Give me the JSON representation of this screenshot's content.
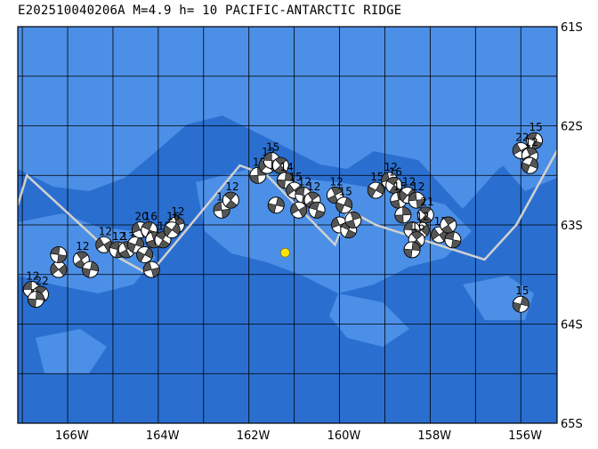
{
  "title": "E202510040206A  M=4.9  h= 10  PACIFIC-ANTARCTIC RIDGE",
  "map": {
    "lon_range": [
      -167.1,
      -155.2
    ],
    "lat_range": [
      -65,
      -61
    ],
    "lat_labels": [
      "61S",
      "62S",
      "63S",
      "64S",
      "65S"
    ],
    "lat_label_values": [
      -61,
      -62,
      -63,
      -64,
      -65
    ],
    "lon_labels": [
      "166W",
      "164W",
      "162W",
      "160W",
      "158W",
      "156W"
    ],
    "lon_label_values": [
      -166,
      -164,
      -162,
      -160,
      -158,
      -156
    ],
    "grid_lons": [
      -167,
      -166,
      -165,
      -164,
      -163,
      -162,
      -161,
      -160,
      -159,
      -158,
      -157,
      -156
    ],
    "grid_lats": [
      -61.5,
      -62,
      -62.5,
      -63,
      -63.5,
      -64,
      -64.5
    ],
    "colors": {
      "ocean_deep": "#2a6fd0",
      "ocean_shallow": "#4c8fe6",
      "grid": "#000000",
      "plate_boundary": "#d0d0d0",
      "event": "#ffe600",
      "beachball_dark": "#555555",
      "beachball_light": "#ffffff"
    },
    "plate_boundary": [
      [
        -167.1,
        -62.8
      ],
      [
        -166.9,
        -62.5
      ],
      [
        -165.0,
        -63.3
      ],
      [
        -164.2,
        -63.5
      ],
      [
        -162.2,
        -62.4
      ],
      [
        -161.6,
        -62.5
      ],
      [
        -160.1,
        -63.2
      ],
      [
        -159.8,
        -62.85
      ],
      [
        -159.2,
        -63.0
      ],
      [
        -156.8,
        -63.35
      ],
      [
        -156.1,
        -63.0
      ],
      [
        -155.2,
        -62.25
      ]
    ],
    "event": {
      "lon": -161.2,
      "lat": -63.28
    },
    "mechanisms": [
      {
        "lon": -166.8,
        "lat": -63.65,
        "label": "12"
      },
      {
        "lon": -166.6,
        "lat": -63.7,
        "label": "22"
      },
      {
        "lon": -166.7,
        "lat": -63.75,
        "label": ""
      },
      {
        "lon": -166.2,
        "lat": -63.45,
        "label": "12"
      },
      {
        "lon": -166.2,
        "lat": -63.3,
        "label": ""
      },
      {
        "lon": -165.7,
        "lat": -63.35,
        "label": "12"
      },
      {
        "lon": -165.5,
        "lat": -63.45,
        "label": ""
      },
      {
        "lon": -165.2,
        "lat": -63.2,
        "label": "12"
      },
      {
        "lon": -164.9,
        "lat": -63.25,
        "label": "12"
      },
      {
        "lon": -164.7,
        "lat": -63.25,
        "label": "13"
      },
      {
        "lon": -164.5,
        "lat": -63.2,
        "label": "15"
      },
      {
        "lon": -164.4,
        "lat": -63.05,
        "label": "20"
      },
      {
        "lon": -164.2,
        "lat": -63.05,
        "label": "16"
      },
      {
        "lon": -164.1,
        "lat": -63.15,
        "label": ""
      },
      {
        "lon": -164.3,
        "lat": -63.3,
        "label": ""
      },
      {
        "lon": -164.15,
        "lat": -63.45,
        "label": ""
      },
      {
        "lon": -163.9,
        "lat": -63.15,
        "label": "15"
      },
      {
        "lon": -163.6,
        "lat": -63.0,
        "label": "12"
      },
      {
        "lon": -163.7,
        "lat": -63.05,
        "label": "16"
      },
      {
        "lon": -162.6,
        "lat": -62.85,
        "label": "1"
      },
      {
        "lon": -162.4,
        "lat": -62.75,
        "label": "12"
      },
      {
        "lon": -161.8,
        "lat": -62.5,
        "label": "15"
      },
      {
        "lon": -161.6,
        "lat": -62.4,
        "label": "12"
      },
      {
        "lon": -161.5,
        "lat": -62.35,
        "label": "15"
      },
      {
        "lon": -161.3,
        "lat": -62.4,
        "label": ""
      },
      {
        "lon": -161.2,
        "lat": -62.55,
        "label": "14"
      },
      {
        "lon": -161.0,
        "lat": -62.65,
        "label": "15"
      },
      {
        "lon": -160.8,
        "lat": -62.7,
        "label": "12"
      },
      {
        "lon": -160.6,
        "lat": -62.75,
        "label": "12"
      },
      {
        "lon": -161.4,
        "lat": -62.8,
        "label": ""
      },
      {
        "lon": -160.9,
        "lat": -62.85,
        "label": ""
      },
      {
        "lon": -160.5,
        "lat": -62.85,
        "label": ""
      },
      {
        "lon": -160.1,
        "lat": -62.7,
        "label": "12"
      },
      {
        "lon": -159.9,
        "lat": -62.8,
        "label": "15"
      },
      {
        "lon": -160.0,
        "lat": -63.0,
        "label": ""
      },
      {
        "lon": -159.8,
        "lat": -63.05,
        "label": ""
      },
      {
        "lon": -159.7,
        "lat": -62.95,
        "label": ""
      },
      {
        "lon": -159.2,
        "lat": -62.65,
        "label": "15"
      },
      {
        "lon": -158.9,
        "lat": -62.55,
        "label": "12"
      },
      {
        "lon": -158.8,
        "lat": -62.6,
        "label": "16"
      },
      {
        "lon": -158.7,
        "lat": -62.75,
        "label": "15"
      },
      {
        "lon": -158.5,
        "lat": -62.7,
        "label": "12"
      },
      {
        "lon": -158.3,
        "lat": -62.75,
        "label": "12"
      },
      {
        "lon": -158.1,
        "lat": -62.9,
        "label": "21"
      },
      {
        "lon": -158.6,
        "lat": -62.9,
        "label": ""
      },
      {
        "lon": -158.2,
        "lat": -63.05,
        "label": "12"
      },
      {
        "lon": -158.4,
        "lat": -63.05,
        "label": ""
      },
      {
        "lon": -158.3,
        "lat": -63.15,
        "label": "16"
      },
      {
        "lon": -158.4,
        "lat": -63.25,
        "label": ""
      },
      {
        "lon": -157.8,
        "lat": -63.1,
        "label": "15"
      },
      {
        "lon": -157.5,
        "lat": -63.15,
        "label": ""
      },
      {
        "lon": -157.6,
        "lat": -63.0,
        "label": ""
      },
      {
        "lon": -156.0,
        "lat": -63.8,
        "label": "15"
      },
      {
        "lon": -156.0,
        "lat": -62.25,
        "label": "22"
      },
      {
        "lon": -155.7,
        "lat": -62.15,
        "label": "15"
      },
      {
        "lon": -155.8,
        "lat": -62.3,
        "label": "12"
      },
      {
        "lon": -155.8,
        "lat": -62.4,
        "label": ""
      }
    ]
  }
}
